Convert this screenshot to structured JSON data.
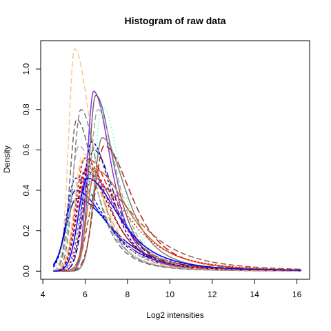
{
  "chart_data": {
    "type": "line",
    "title": "Histogram of raw data",
    "xlabel": "Log2 intensities",
    "ylabel": "Density",
    "xlim": [
      3.9,
      16.6
    ],
    "ylim": [
      -0.04,
      1.14
    ],
    "xticks": [
      4,
      6,
      8,
      10,
      12,
      14,
      16
    ],
    "xtick_labels": [
      "4",
      "6",
      "8",
      "10",
      "12",
      "14",
      "16"
    ],
    "yticks": [
      0.0,
      0.2,
      0.4,
      0.6,
      0.8,
      1.0
    ],
    "ytick_labels": [
      "0.0",
      "0.2",
      "0.4",
      "0.6",
      "0.8",
      "1.0"
    ],
    "grid": false,
    "legend": "none",
    "x_range": [
      4.5,
      16.2
    ],
    "series": [
      {
        "mode": 5.5,
        "peak": 1.1,
        "wl": 0.28,
        "wr": 0.95,
        "color": "#f5c78c",
        "dash": "8,4"
      },
      {
        "mode": 5.55,
        "peak": 0.4,
        "wl": 0.45,
        "wr": 1.7,
        "color": "#0000ff",
        "dash": ""
      },
      {
        "mode": 5.6,
        "peak": 0.36,
        "wl": 0.5,
        "wr": 1.9,
        "color": "#0000cd",
        "dash": ""
      },
      {
        "mode": 5.55,
        "peak": 0.46,
        "wl": 0.42,
        "wr": 1.5,
        "color": "#0000cd",
        "dash": "4,3"
      },
      {
        "mode": 5.6,
        "peak": 0.44,
        "wl": 0.4,
        "wr": 1.4,
        "color": "#7fffd4",
        "dash": "2,3"
      },
      {
        "mode": 5.8,
        "peak": 0.8,
        "wl": 0.35,
        "wr": 0.95,
        "color": "#808080",
        "dash": "8,4"
      },
      {
        "mode": 5.6,
        "peak": 0.75,
        "wl": 0.32,
        "wr": 1.0,
        "color": "#696969",
        "dash": "8,4"
      },
      {
        "mode": 5.7,
        "peak": 0.62,
        "wl": 0.36,
        "wr": 1.1,
        "color": "#a9a9a9",
        "dash": "8,4"
      },
      {
        "mode": 5.9,
        "peak": 0.58,
        "wl": 0.4,
        "wr": 1.2,
        "color": "#f5deb3",
        "dash": "8,4"
      },
      {
        "mode": 6.0,
        "peak": 0.56,
        "wl": 0.42,
        "wr": 1.3,
        "color": "#b22222",
        "dash": "4,3"
      },
      {
        "mode": 6.1,
        "peak": 0.52,
        "wl": 0.45,
        "wr": 1.5,
        "color": "#dc143c",
        "dash": "4,3"
      },
      {
        "mode": 6.2,
        "peak": 0.55,
        "wl": 0.45,
        "wr": 1.4,
        "color": "#ff0000",
        "dash": "8,4"
      },
      {
        "mode": 6.3,
        "peak": 0.64,
        "wl": 0.38,
        "wr": 1.1,
        "color": "#0000cd",
        "dash": "4,3"
      },
      {
        "mode": 6.4,
        "peak": 0.6,
        "wl": 0.42,
        "wr": 1.2,
        "color": "#191970",
        "dash": "8,4"
      },
      {
        "mode": 6.4,
        "peak": 0.89,
        "wl": 0.3,
        "wr": 0.95,
        "color": "#8a2be2",
        "dash": ""
      },
      {
        "mode": 6.5,
        "peak": 0.87,
        "wl": 0.32,
        "wr": 1.0,
        "color": "#696969",
        "dash": ""
      },
      {
        "mode": 6.8,
        "peak": 0.82,
        "wl": 0.35,
        "wr": 1.0,
        "color": "#7fffd4",
        "dash": "2,3"
      },
      {
        "mode": 6.6,
        "peak": 0.8,
        "wl": 0.36,
        "wr": 1.05,
        "color": "#a9a9a9",
        "dash": "8,4"
      },
      {
        "mode": 6.8,
        "peak": 0.66,
        "wl": 0.38,
        "wr": 1.3,
        "color": "#808080",
        "dash": ""
      },
      {
        "mode": 6.9,
        "peak": 0.62,
        "wl": 0.45,
        "wr": 1.5,
        "color": "#b22222",
        "dash": "10,4"
      },
      {
        "mode": 6.5,
        "peak": 0.5,
        "wl": 0.4,
        "wr": 1.8,
        "color": "#d2691e",
        "dash": ""
      },
      {
        "mode": 6.3,
        "peak": 0.45,
        "wl": 0.45,
        "wr": 2.0,
        "color": "#ff0000",
        "dash": "2,3"
      },
      {
        "mode": 6.2,
        "peak": 0.48,
        "wl": 0.42,
        "wr": 1.6,
        "color": "#4169e1",
        "dash": "4,3"
      },
      {
        "mode": 6.0,
        "peak": 0.5,
        "wl": 0.4,
        "wr": 1.4,
        "color": "#800000",
        "dash": "4,3"
      },
      {
        "mode": 6.6,
        "peak": 0.42,
        "wl": 0.45,
        "wr": 2.2,
        "color": "#a0522d",
        "dash": "8,4"
      },
      {
        "mode": 5.9,
        "peak": 0.55,
        "wl": 0.38,
        "wr": 1.2,
        "color": "#f4a460",
        "dash": "8,4"
      },
      {
        "mode": 6.1,
        "peak": 0.46,
        "wl": 0.42,
        "wr": 1.7,
        "color": "#0000ff",
        "dash": ""
      }
    ]
  }
}
